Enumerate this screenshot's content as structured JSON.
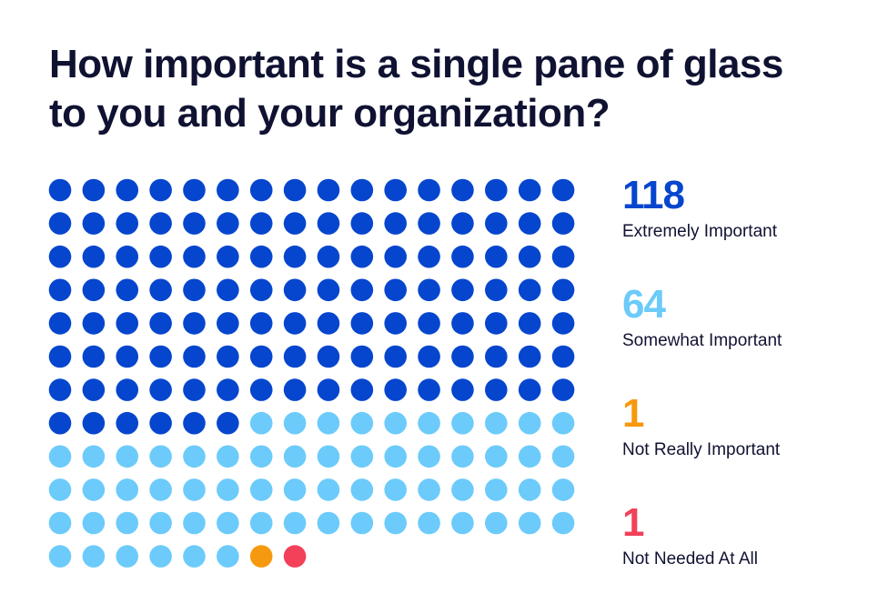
{
  "title_line1": "How important is a single pane of glass",
  "title_line2": "to you and your organization?",
  "colors": {
    "extremely": "#0646CE",
    "somewhat": "#6CCBFA",
    "not_really": "#F7990E",
    "not_needed": "#F24159",
    "text": "#101232"
  },
  "chart_data": {
    "type": "waffle",
    "title": "How important is a single pane of glass to you and your organization?",
    "categories": [
      "Extremely Important",
      "Somewhat Important",
      "Not Really Important",
      "Not Needed At All"
    ],
    "values": [
      118,
      64,
      1,
      1
    ],
    "columns": 16,
    "legend": [
      {
        "count": "118",
        "label": "Extremely Important",
        "color": "#0646CE"
      },
      {
        "count": "64",
        "label": "Somewhat Important",
        "color": "#6CCBFA"
      },
      {
        "count": "1",
        "label": "Not Really Important",
        "color": "#F7990E"
      },
      {
        "count": "1",
        "label": "Not Needed At All",
        "color": "#F24159"
      }
    ]
  }
}
